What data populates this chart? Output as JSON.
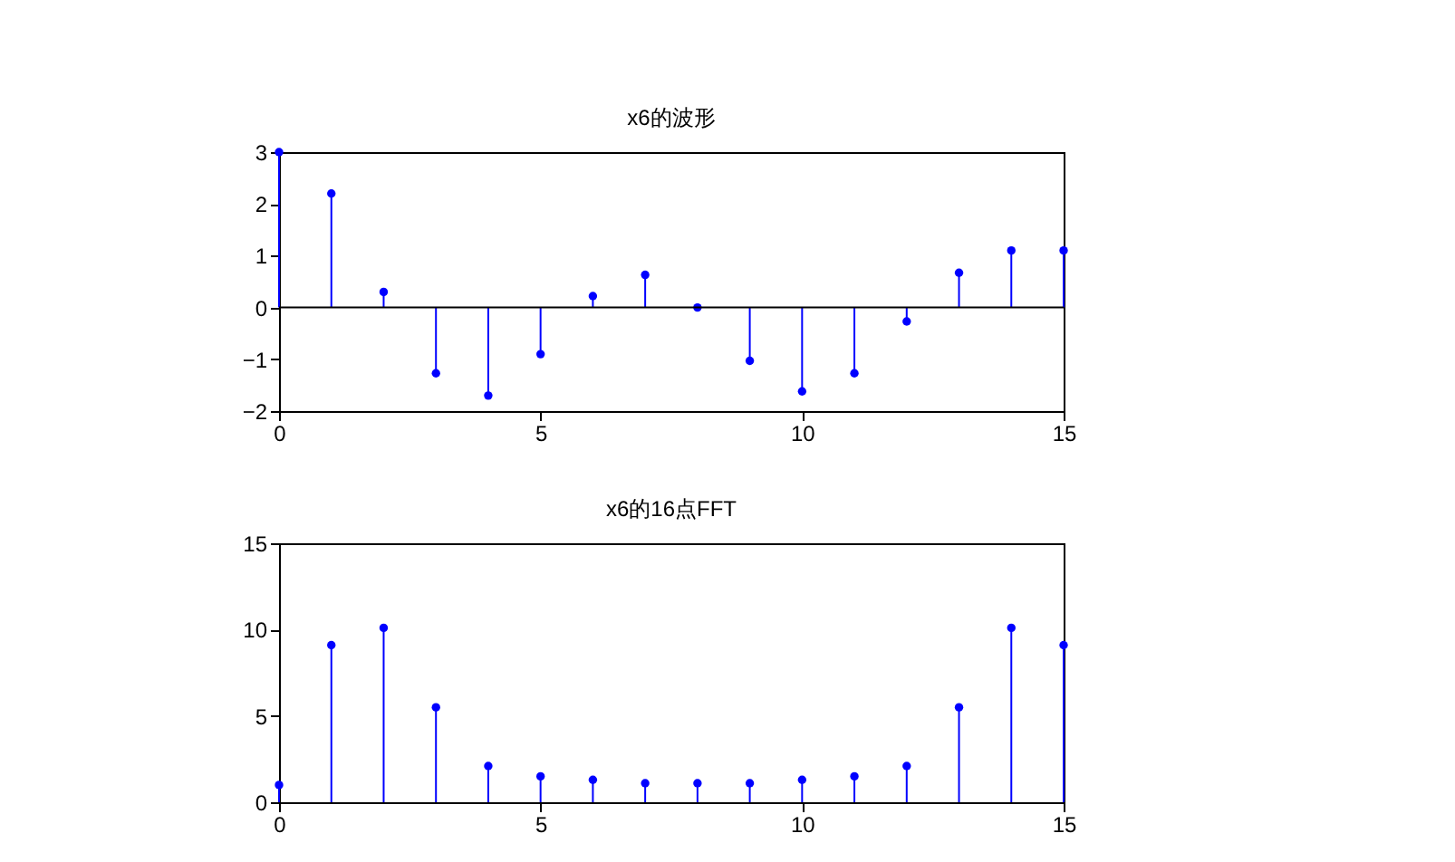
{
  "chart_data": [
    {
      "type": "lollipop",
      "title": "x6的波形",
      "x": [
        0,
        1,
        2,
        3,
        4,
        5,
        6,
        7,
        8,
        9,
        10,
        11,
        12,
        13,
        14,
        15
      ],
      "series": [
        {
          "color": "#0000ff",
          "values": [
            3,
            2.2,
            0.3,
            -1.27,
            -1.7,
            -0.9,
            0.22,
            0.63,
            0,
            -1.03,
            -1.62,
            -1.27,
            -0.27,
            0.67,
            1.1,
            1.1
          ]
        }
      ],
      "xlim": [
        0,
        15
      ],
      "xticks": [
        0,
        5,
        10,
        15
      ],
      "ylim": [
        -2,
        3
      ],
      "yticks": [
        -2,
        -1,
        0,
        1,
        2,
        3
      ],
      "ref_lines": [
        {
          "axis": "y",
          "value": 0,
          "color": "#000000"
        }
      ],
      "marker": "circle",
      "grid": false
    },
    {
      "type": "lollipop",
      "title": "x6的16点FFT",
      "x": [
        0,
        1,
        2,
        3,
        4,
        5,
        6,
        7,
        8,
        9,
        10,
        11,
        12,
        13,
        14,
        15
      ],
      "series": [
        {
          "color": "#0000ff",
          "values": [
            1,
            9.1,
            10.1,
            5.5,
            2.1,
            1.5,
            1.3,
            1.1,
            1.1,
            1.1,
            1.3,
            1.5,
            2.1,
            5.5,
            10.1,
            9.1
          ]
        }
      ],
      "xlim": [
        0,
        15
      ],
      "xticks": [
        0,
        5,
        10,
        15
      ],
      "ylim": [
        0,
        15
      ],
      "yticks": [
        0,
        5,
        10,
        15
      ],
      "marker": "circle",
      "grid": false
    }
  ]
}
